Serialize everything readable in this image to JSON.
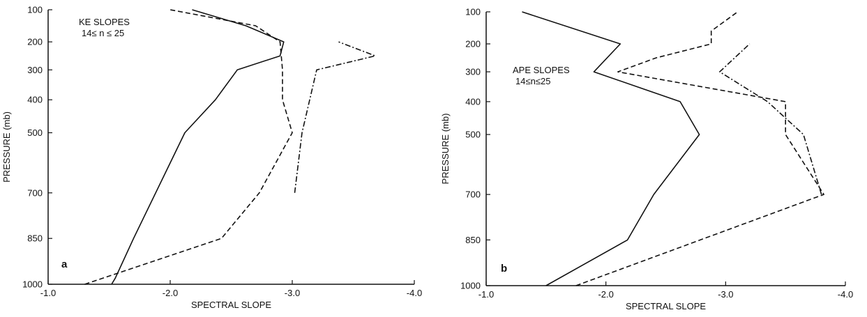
{
  "chart_data": [
    {
      "type": "line",
      "panel_label": "a",
      "annotation_lines": [
        "KE SLOPES",
        "14≤ n ≤ 25"
      ],
      "xlabel": "SPECTRAL SLOPE",
      "ylabel": "PRESSURE (mb)",
      "xlim": [
        -1.0,
        -4.0
      ],
      "xticks": [
        -1.0,
        -2.0,
        -3.0,
        -4.0
      ],
      "xtick_labels": [
        "-1.0",
        "-2.0",
        "-3.0",
        "-4.0"
      ],
      "ylim": [
        1000,
        100
      ],
      "yticks": [
        100,
        200,
        300,
        400,
        500,
        700,
        850,
        1000
      ],
      "ytick_labels": [
        "100",
        "200",
        "300",
        "400",
        "500",
        "700",
        "850",
        "1000"
      ],
      "grid": false,
      "series": [
        {
          "style": "solid",
          "x": [
            -1.52,
            -1.55,
            -1.7,
            -2.12,
            -2.37,
            -2.55,
            -2.9,
            -2.93,
            -2.62,
            -2.18
          ],
          "y": [
            1000,
            980,
            850,
            500,
            400,
            300,
            250,
            200,
            150,
            100
          ]
        },
        {
          "style": "dashed",
          "x": [
            -1.3,
            -2.42,
            -2.73,
            -3.0,
            -2.92,
            -2.92,
            -2.9,
            -2.7,
            -2.0
          ],
          "y": [
            1000,
            850,
            700,
            500,
            400,
            300,
            200,
            150,
            100
          ]
        },
        {
          "style": "dashdot",
          "x": [
            -3.02,
            -3.08,
            -3.2,
            -3.68,
            -3.38
          ],
          "y": [
            700,
            500,
            300,
            250,
            200
          ]
        }
      ]
    },
    {
      "type": "line",
      "panel_label": "b",
      "annotation_lines": [
        "APE SLOPES",
        "14≤n≤25"
      ],
      "xlabel": "SPECTRAL SLOPE",
      "ylabel": "PRESSURE (mb)",
      "xlim": [
        -1.0,
        -4.0
      ],
      "xticks": [
        -1.0,
        -2.0,
        -3.0,
        -4.0
      ],
      "xtick_labels": [
        "-1.0",
        "-2.0",
        "-3.0",
        "-4.0"
      ],
      "ylim": [
        1000,
        100
      ],
      "yticks": [
        100,
        200,
        300,
        400,
        500,
        700,
        850,
        1000
      ],
      "ytick_labels": [
        "100",
        "200",
        "300",
        "400",
        "500",
        "700",
        "850",
        "1000"
      ],
      "grid": false,
      "series": [
        {
          "style": "solid",
          "x": [
            -1.5,
            -2.18,
            -2.4,
            -2.78,
            -2.62,
            -1.9,
            -2.12,
            -1.3
          ],
          "y": [
            1000,
            850,
            700,
            500,
            400,
            300,
            200,
            100
          ]
        },
        {
          "style": "dashed",
          "x": [
            -1.75,
            -3.82,
            -3.5,
            -3.5,
            -2.1,
            -2.42,
            -2.88,
            -2.88,
            -3.1
          ],
          "y": [
            1000,
            700,
            500,
            400,
            300,
            250,
            200,
            160,
            100
          ]
        },
        {
          "style": "dashdot",
          "x": [
            -3.8,
            -3.65,
            -3.35,
            -2.95,
            -3.2
          ],
          "y": [
            700,
            500,
            400,
            300,
            200
          ]
        }
      ]
    }
  ]
}
